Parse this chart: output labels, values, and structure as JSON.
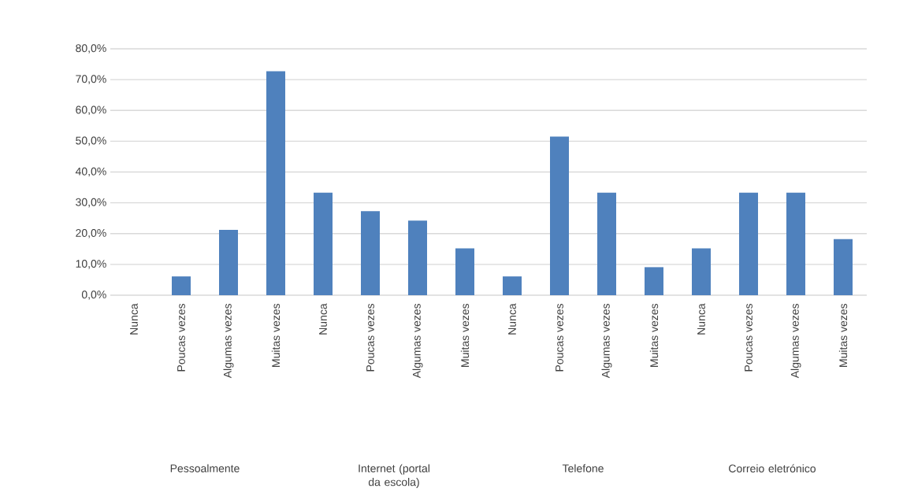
{
  "chart_data": {
    "type": "bar",
    "categories": [
      "Nunca",
      "Poucas vezes",
      "Algumas vezes",
      "Muitas vezes",
      "Nunca",
      "Poucas vezes",
      "Algumas vezes",
      "Muitas vezes",
      "Nunca",
      "Poucas vezes",
      "Algumas vezes",
      "Muitas vezes",
      "Nunca",
      "Poucas vezes",
      "Algumas vezes",
      "Muitas vezes"
    ],
    "values": [
      0,
      6.1,
      21.2,
      72.7,
      33.3,
      27.3,
      24.2,
      15.2,
      6.1,
      51.5,
      33.3,
      9.1,
      15.2,
      33.3,
      33.3,
      18.2
    ],
    "color": "#4f81bd",
    "ylim": [
      0,
      80
    ],
    "yticks": [
      {
        "value": 0,
        "label": "0,0%"
      },
      {
        "value": 10,
        "label": "10,0%"
      },
      {
        "value": 20,
        "label": "20,0%"
      },
      {
        "value": 30,
        "label": "30,0%"
      },
      {
        "value": 40,
        "label": "40,0%"
      },
      {
        "value": 50,
        "label": "50,0%"
      },
      {
        "value": 60,
        "label": "60,0%"
      },
      {
        "value": 70,
        "label": "70,0%"
      },
      {
        "value": 80,
        "label": "80,0%"
      }
    ],
    "grid": "y",
    "annotations": [
      "Pessoalmente",
      "Internet (portal da escola)",
      "Telefone",
      "Correio eletrónico"
    ]
  }
}
